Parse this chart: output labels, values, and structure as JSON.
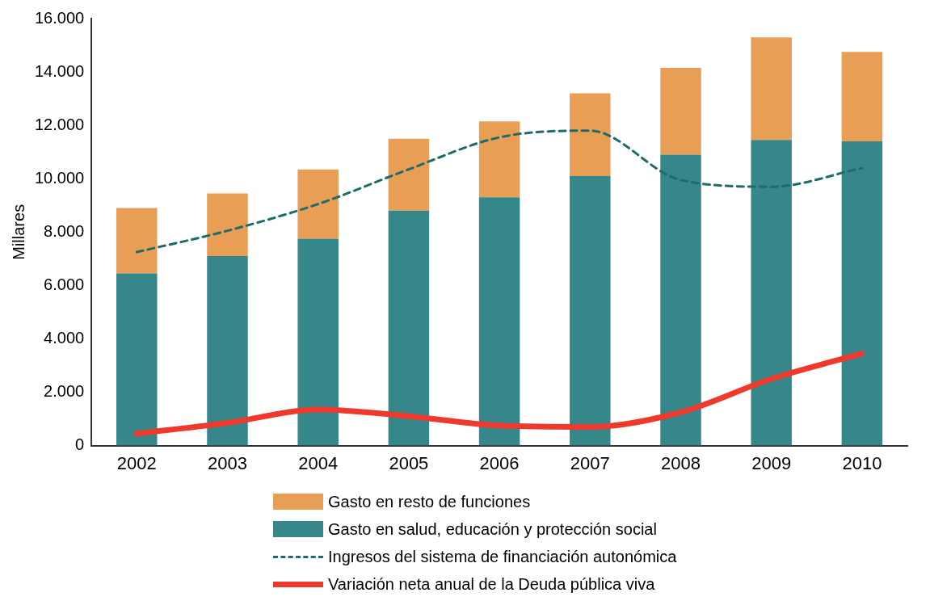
{
  "chart_data": {
    "type": "bar",
    "ylabel": "Millares",
    "categories": [
      "2002",
      "2003",
      "2004",
      "2005",
      "2006",
      "2007",
      "2008",
      "2009",
      "2010"
    ],
    "stacked": true,
    "grid": false,
    "legend": "bottom",
    "marker": "none",
    "ylim": [
      0,
      16000
    ],
    "yticks": [
      {
        "value": 0,
        "label": "0"
      },
      {
        "value": 2000,
        "label": "2.000"
      },
      {
        "value": 4000,
        "label": "4.000"
      },
      {
        "value": 6000,
        "label": "6.000"
      },
      {
        "value": 8000,
        "label": "8.000"
      },
      {
        "value": 10000,
        "label": "10.000"
      },
      {
        "value": 12000,
        "label": "12.000"
      },
      {
        "value": 14000,
        "label": "14.000"
      },
      {
        "value": 16000,
        "label": "16.000"
      }
    ],
    "series": [
      {
        "name": "Gasto en salud, educación y protección social",
        "color": "#36878a",
        "values": [
          6450,
          7100,
          7750,
          8800,
          9300,
          10100,
          10900,
          11450,
          11400
        ]
      },
      {
        "name": "Gasto en resto de funciones",
        "color": "#e89f55",
        "values": [
          2450,
          2350,
          2600,
          2700,
          2850,
          3100,
          3250,
          3850,
          3350
        ]
      },
      {
        "name": "Ingresos del sistema de financiación autonómica",
        "type": "line",
        "line_style": "dashed",
        "color": "#1e6b6b",
        "values": [
          7250,
          8050,
          9050,
          10350,
          11550,
          11800,
          9950,
          9700,
          10400
        ]
      },
      {
        "name": "Variación neta anual de la Deuda pública viva",
        "type": "line",
        "line_style": "solid",
        "color": "#ee3a2c",
        "values": [
          450,
          850,
          1350,
          1100,
          750,
          700,
          1250,
          2500,
          3450
        ]
      }
    ]
  }
}
